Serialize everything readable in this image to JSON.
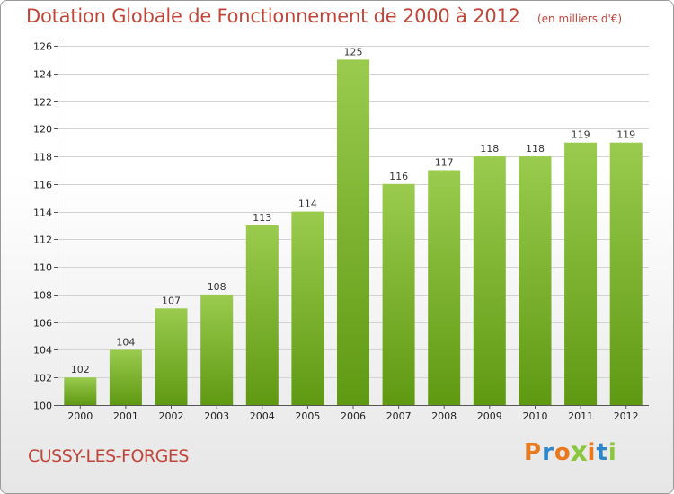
{
  "chart_data": {
    "type": "bar",
    "title": "Dotation Globale de Fonctionnement de 2000 à 2012",
    "subtitle": "(en milliers d'€)",
    "categories": [
      "2000",
      "2001",
      "2002",
      "2003",
      "2004",
      "2005",
      "2006",
      "2007",
      "2008",
      "2009",
      "2010",
      "2011",
      "2012"
    ],
    "values": [
      102,
      104,
      107,
      108,
      113,
      114,
      125,
      116,
      117,
      118,
      118,
      119,
      119
    ],
    "data_labels": [
      "102",
      "104",
      "107",
      "108",
      "113",
      "114",
      "125",
      "116",
      "117",
      "118",
      "118",
      "119",
      "119"
    ],
    "xlabel": "",
    "ylabel": "",
    "ylim": [
      100,
      126
    ],
    "yticks": [
      100,
      102,
      104,
      106,
      108,
      110,
      112,
      114,
      116,
      118,
      120,
      122,
      124,
      126
    ],
    "grid": true,
    "legend": "none",
    "colors": {
      "bar_top": "#9acb4e",
      "bar_bottom": "#5f9912",
      "title": "#c0463a"
    }
  },
  "town": "CUSSY-LES-FORGES",
  "brand": {
    "text": "Proxiti",
    "letters": [
      {
        "ch": "P",
        "color": "#e8791e"
      },
      {
        "ch": "r",
        "color": "#2e86c8"
      },
      {
        "ch": "o",
        "color": "#e8791e"
      },
      {
        "ch": "x",
        "color": "#8cc63f"
      },
      {
        "ch": "i",
        "color": "#e8791e"
      },
      {
        "ch": "t",
        "color": "#2e86c8"
      },
      {
        "ch": "i",
        "color": "#8cc63f"
      }
    ]
  }
}
